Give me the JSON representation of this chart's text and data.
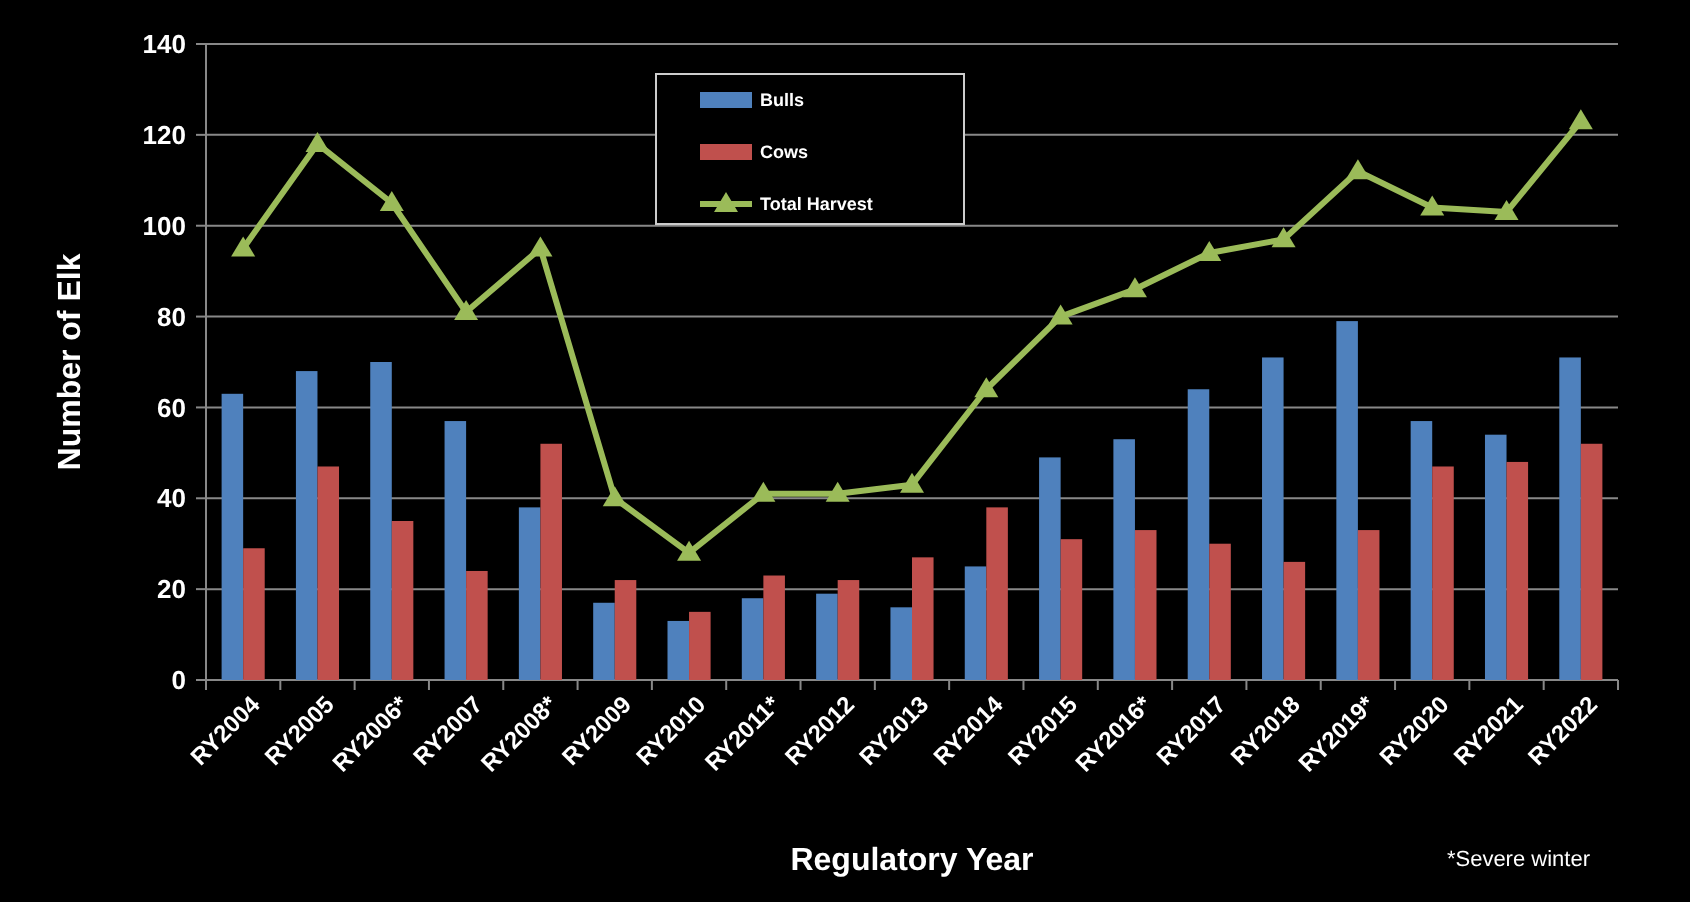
{
  "chart_data": {
    "type": "bar",
    "xlabel": "Regulatory Year",
    "ylabel": "Number of Elk",
    "categories": [
      "RY2004",
      "RY2005",
      "RY2006*",
      "RY2007",
      "RY2008*",
      "RY2009",
      "RY2010",
      "RY2011*",
      "RY2012",
      "RY2013",
      "RY2014",
      "RY2015",
      "RY2016*",
      "RY2017",
      "RY2018",
      "RY2019*",
      "RY2020",
      "RY2021",
      "RY2022"
    ],
    "series": [
      {
        "name": "Bulls",
        "color": "#4f81bd",
        "values": [
          63,
          68,
          70,
          57,
          38,
          17,
          13,
          18,
          19,
          16,
          25,
          49,
          53,
          64,
          71,
          79,
          57,
          54,
          71
        ]
      },
      {
        "name": "Cows",
        "color": "#c0504d",
        "values": [
          29,
          47,
          35,
          24,
          52,
          22,
          15,
          23,
          22,
          27,
          38,
          31,
          33,
          30,
          26,
          33,
          47,
          48,
          52
        ]
      },
      {
        "name": "Total Harvest",
        "type": "line",
        "color": "#9bbb59",
        "marker": "triangle",
        "values": [
          95,
          118,
          105,
          81,
          95,
          40,
          28,
          41,
          41,
          43,
          64,
          80,
          86,
          94,
          97,
          112,
          104,
          103,
          123
        ]
      }
    ],
    "ylim": [
      0,
      140
    ],
    "yticks": [
      0,
      20,
      40,
      60,
      80,
      100,
      120,
      140
    ],
    "grid": "y",
    "legend": "top",
    "annotations": [
      "*Severe winter"
    ]
  }
}
